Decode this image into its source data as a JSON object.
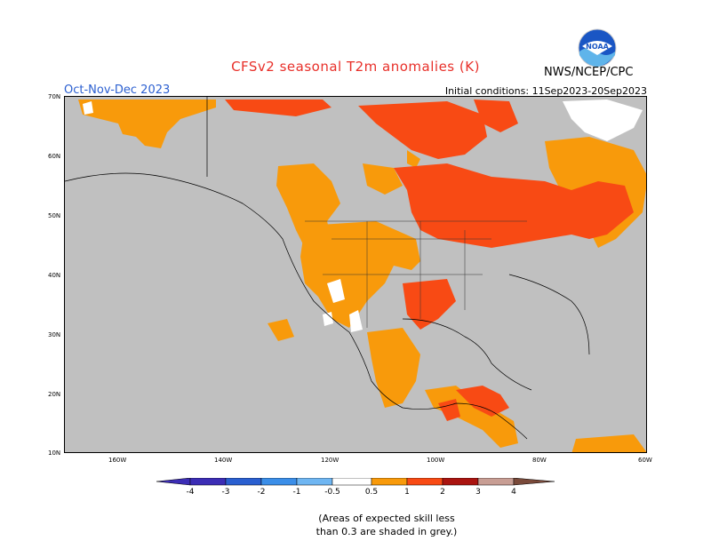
{
  "title": "CFSv2 seasonal T2m anomalies (K)",
  "season": "Oct-Nov-Dec 2023",
  "initial_conditions": "Initial conditions: 11Sep2023-20Sep2023",
  "agency": "NWS/NCEP/CPC",
  "logo_text": "NOAA",
  "note_line1": "(Areas of expected skill less",
  "note_line2": "than 0.3 are shaded in grey.)",
  "lat_labels": [
    "70N",
    "60N",
    "50N",
    "40N",
    "30N",
    "20N",
    "10N"
  ],
  "lon_labels": [
    "160W",
    "140W",
    "120W",
    "100W",
    "80W",
    "60W"
  ],
  "legend": {
    "ticks": [
      "-4",
      "-3",
      "-2",
      "-1",
      "-0.5",
      "0.5",
      "1",
      "2",
      "3",
      "4"
    ],
    "colors": [
      "#3c2db5",
      "#2a5fd0",
      "#3b8ee8",
      "#6fb6f2",
      "#ffffff",
      "#f89a0b",
      "#f84a14",
      "#aa1410",
      "#c89e94",
      "#7a4a3a"
    ]
  },
  "colors": {
    "grey_land": "#c0c0c0",
    "orange": "#f89a0b",
    "red_orange": "#f84a14",
    "white": "#ffffff"
  }
}
